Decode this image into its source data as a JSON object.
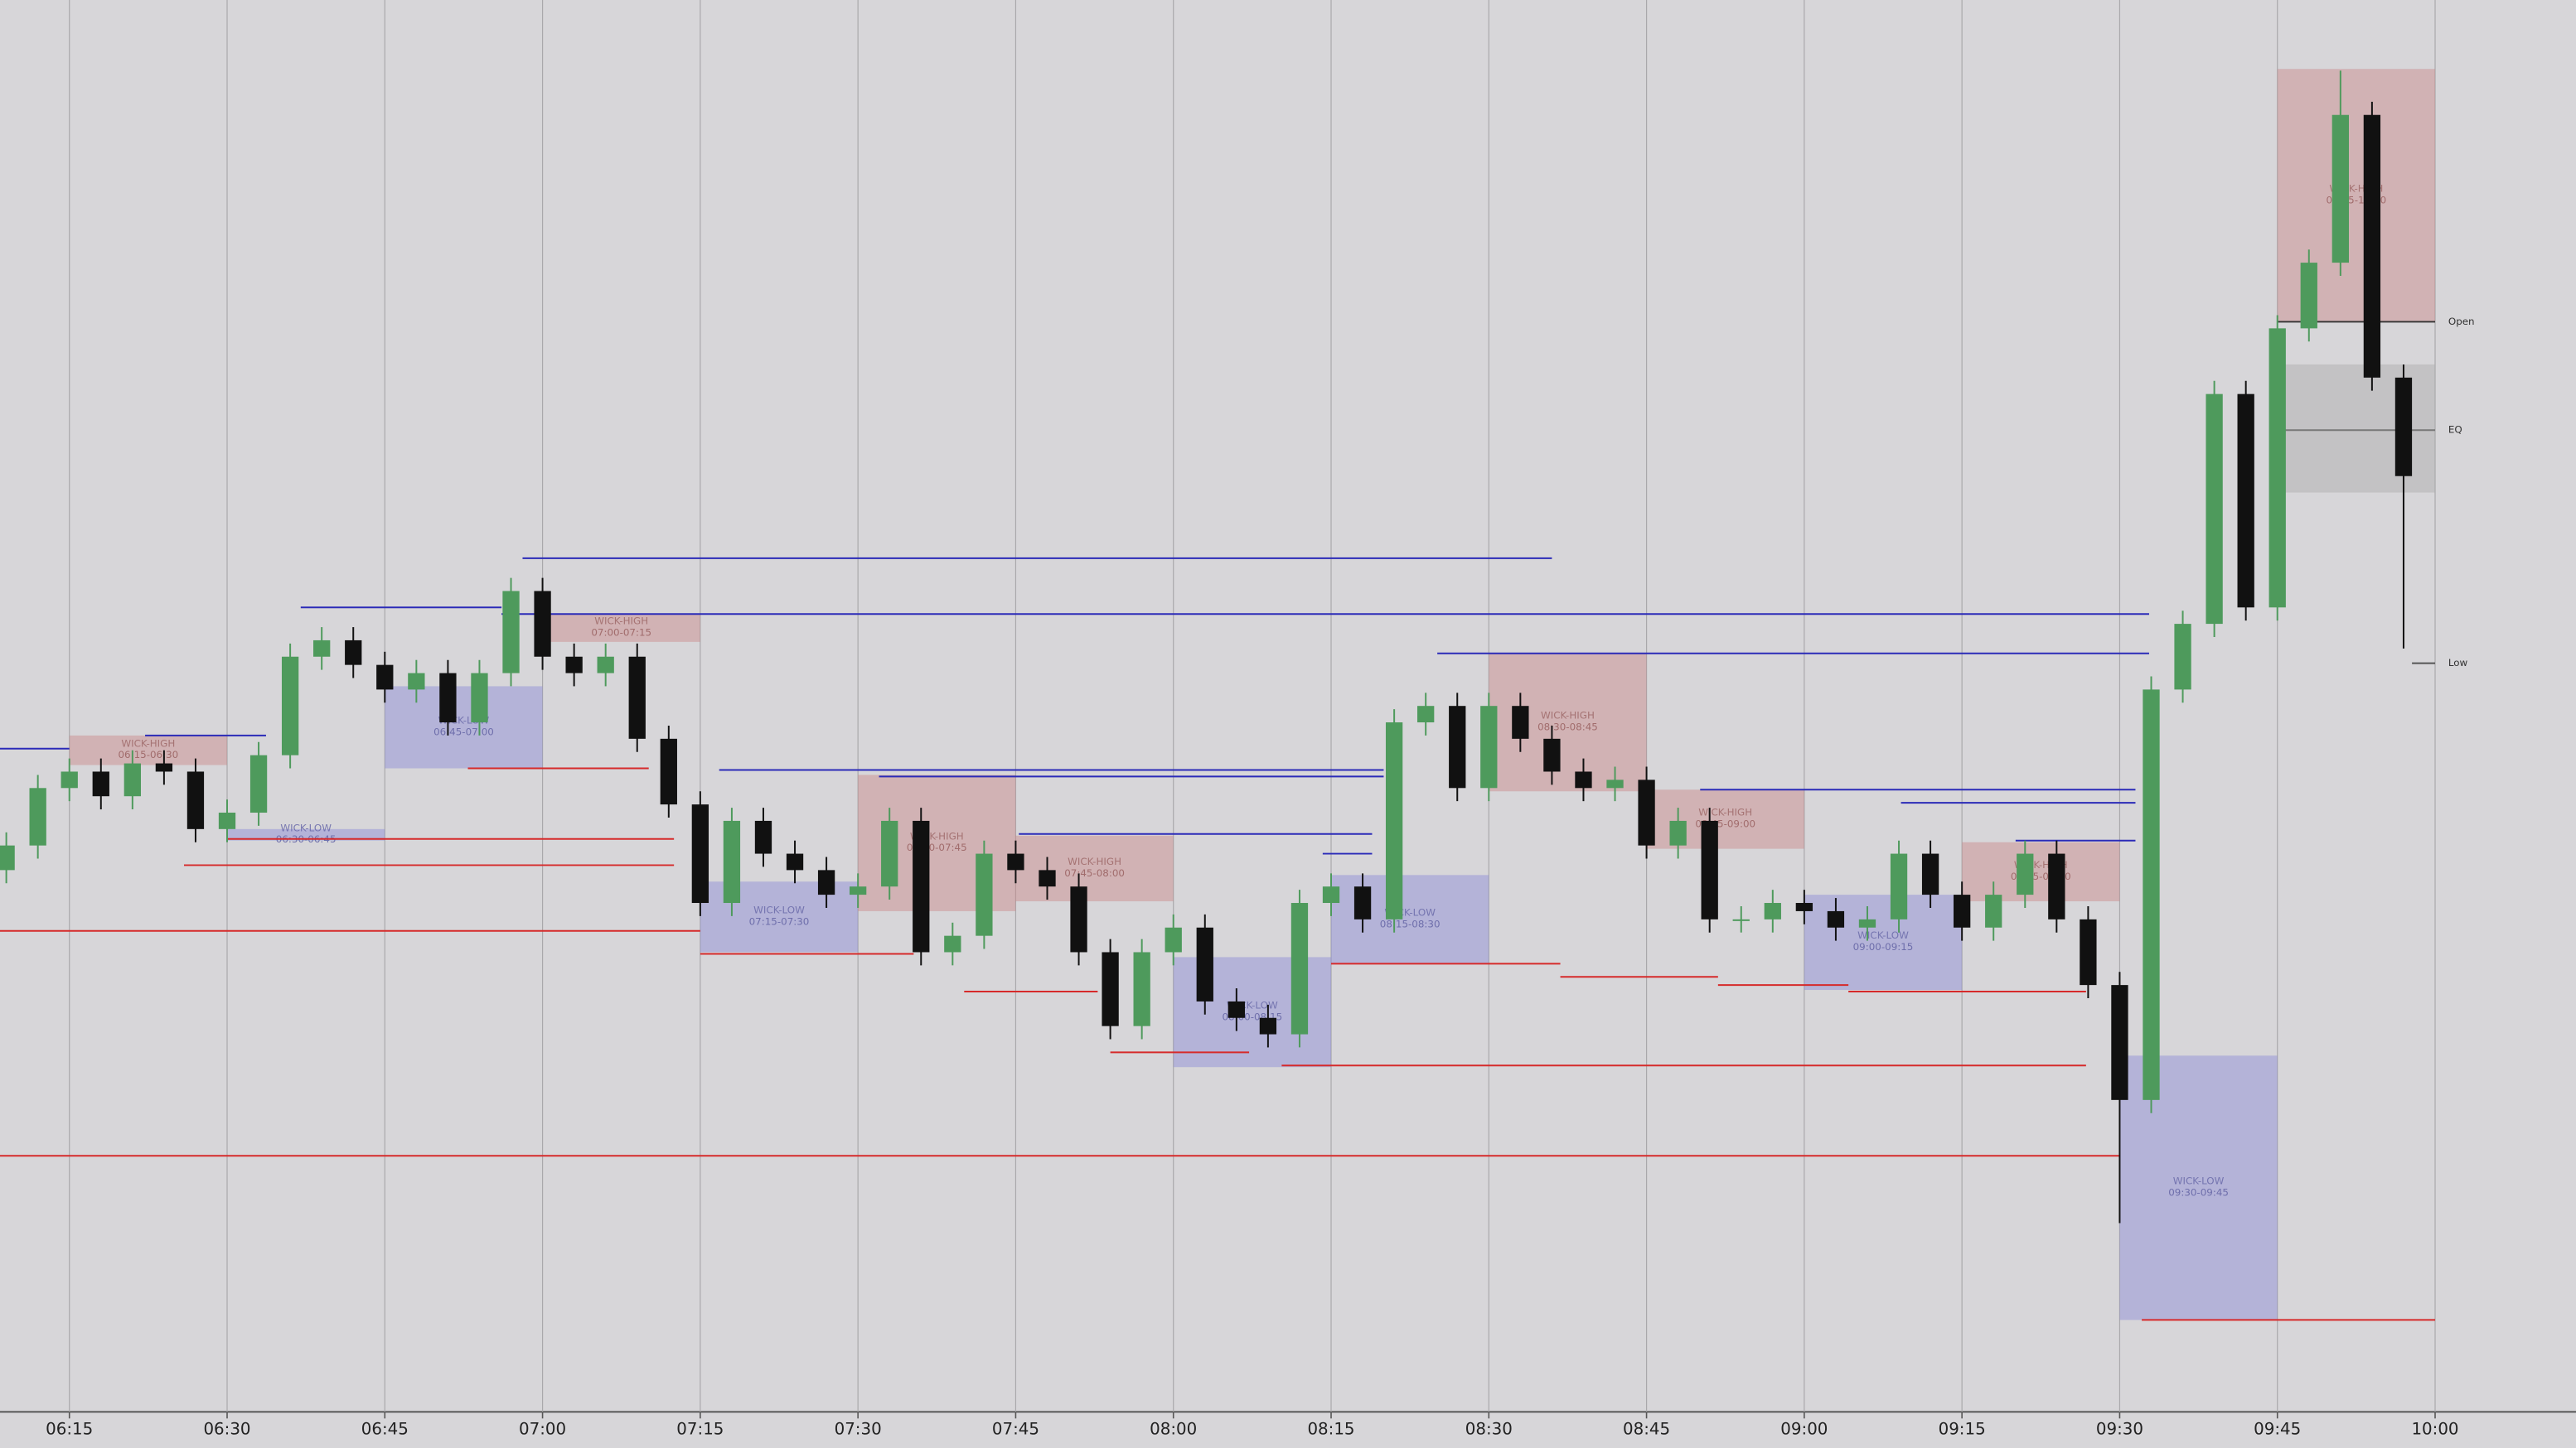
{
  "chart_data": {
    "type": "candlestick",
    "x": [
      369,
      372,
      375,
      378,
      381,
      384,
      387,
      390,
      393,
      396,
      399,
      402,
      405,
      408,
      411,
      414,
      417,
      420,
      423,
      426,
      429,
      432,
      435,
      438,
      441,
      444,
      447,
      450,
      453,
      456,
      459,
      462,
      465,
      468,
      471,
      474,
      477,
      480,
      483,
      486,
      489,
      492,
      495,
      498,
      501,
      504,
      507,
      510,
      513,
      516,
      519,
      522,
      525,
      528,
      531,
      534,
      537,
      540,
      543,
      546,
      549,
      552,
      555,
      558,
      561,
      564,
      567,
      570,
      573,
      576,
      579,
      582,
      585,
      588,
      591,
      594,
      597
    ],
    "open": [
      330,
      345,
      380,
      390,
      375,
      395,
      390,
      355,
      365,
      400,
      460,
      470,
      455,
      440,
      450,
      420,
      450,
      500,
      460,
      450,
      460,
      410,
      370,
      310,
      360,
      340,
      330,
      315,
      320,
      360,
      280,
      290,
      340,
      330,
      320,
      280,
      235,
      280,
      295,
      250,
      240,
      230,
      310,
      320,
      300,
      420,
      430,
      380,
      430,
      410,
      390,
      380,
      385,
      345,
      360,
      300,
      300,
      310,
      305,
      295,
      300,
      340,
      315,
      295,
      315,
      340,
      300,
      260,
      190,
      440,
      480,
      620,
      490,
      660,
      700,
      790,
      630
    ],
    "high": [
      353,
      388,
      398,
      398,
      403,
      403,
      398,
      373,
      408,
      468,
      478,
      478,
      463,
      458,
      458,
      458,
      508,
      508,
      468,
      468,
      468,
      418,
      378,
      368,
      368,
      348,
      338,
      328,
      368,
      368,
      298,
      348,
      348,
      338,
      328,
      288,
      288,
      303,
      303,
      258,
      248,
      318,
      328,
      328,
      428,
      438,
      438,
      438,
      438,
      418,
      398,
      393,
      393,
      368,
      368,
      308,
      318,
      318,
      313,
      308,
      348,
      348,
      323,
      323,
      348,
      348,
      308,
      268,
      448,
      488,
      628,
      628,
      668,
      708,
      817,
      798,
      638
    ],
    "low": [
      322,
      337,
      372,
      367,
      367,
      382,
      347,
      347,
      357,
      392,
      452,
      447,
      432,
      432,
      412,
      412,
      442,
      452,
      442,
      442,
      402,
      362,
      302,
      302,
      332,
      322,
      307,
      307,
      312,
      272,
      272,
      282,
      322,
      312,
      272,
      227,
      227,
      272,
      242,
      232,
      222,
      222,
      302,
      292,
      292,
      412,
      372,
      372,
      402,
      382,
      372,
      372,
      337,
      337,
      292,
      292,
      292,
      297,
      287,
      287,
      292,
      307,
      287,
      287,
      307,
      292,
      252,
      115,
      182,
      432,
      472,
      482,
      482,
      652,
      692,
      622,
      465
    ],
    "close": [
      345,
      380,
      390,
      375,
      395,
      390,
      355,
      365,
      400,
      460,
      470,
      455,
      440,
      450,
      420,
      450,
      500,
      460,
      450,
      460,
      410,
      370,
      310,
      360,
      340,
      330,
      315,
      320,
      360,
      280,
      290,
      340,
      330,
      320,
      280,
      235,
      280,
      295,
      250,
      240,
      230,
      310,
      320,
      300,
      420,
      430,
      380,
      430,
      410,
      390,
      380,
      385,
      345,
      360,
      300,
      300,
      310,
      305,
      295,
      300,
      340,
      315,
      295,
      315,
      340,
      300,
      260,
      190,
      440,
      480,
      620,
      490,
      660,
      700,
      790,
      630,
      570
    ],
    "up_color": "#4e9a5c",
    "down_color": "#111111",
    "xlim": [
      368.4,
      613.4
    ],
    "ylim": [
      0,
      860
    ],
    "xticks": [
      {
        "value": 375,
        "label": "06:15"
      },
      {
        "value": 390,
        "label": "06:30"
      },
      {
        "value": 405,
        "label": "06:45"
      },
      {
        "value": 420,
        "label": "07:00"
      },
      {
        "value": 435,
        "label": "07:15"
      },
      {
        "value": 450,
        "label": "07:30"
      },
      {
        "value": 465,
        "label": "07:45"
      },
      {
        "value": 480,
        "label": "08:00"
      },
      {
        "value": 495,
        "label": "08:15"
      },
      {
        "value": 510,
        "label": "08:30"
      },
      {
        "value": 525,
        "label": "08:45"
      },
      {
        "value": 540,
        "label": "09:00"
      },
      {
        "value": 555,
        "label": "09:15"
      },
      {
        "value": 570,
        "label": "09:30"
      },
      {
        "value": 585,
        "label": "09:45"
      },
      {
        "value": 600,
        "label": "10:00"
      }
    ],
    "grid": true,
    "zones": [
      {
        "start": 375,
        "end": 390,
        "top": 412,
        "bottom": 394,
        "color": "#c98787",
        "name": "WICK-HIGH",
        "range": "06:15-06:30"
      },
      {
        "start": 390,
        "end": 405,
        "top": 355,
        "bottom": 348,
        "color": "#8a8ad6",
        "name": "WICK-LOW",
        "range": "06:30-06:45"
      },
      {
        "start": 405,
        "end": 420,
        "top": 442,
        "bottom": 392,
        "color": "#8a8ad6",
        "name": "WICK-LOW",
        "range": "06:45-07:00"
      },
      {
        "start": 420,
        "end": 435,
        "top": 486,
        "bottom": 469,
        "color": "#c98787",
        "name": "WICK-HIGH",
        "range": "07:00-07:15"
      },
      {
        "start": 435,
        "end": 450,
        "top": 323,
        "bottom": 280,
        "color": "#8a8ad6",
        "name": "WICK-LOW",
        "range": "07:15-07:30"
      },
      {
        "start": 450,
        "end": 465,
        "top": 388,
        "bottom": 305,
        "color": "#c98787",
        "name": "WICK-HIGH",
        "range": "07:30-07:45"
      },
      {
        "start": 465,
        "end": 480,
        "top": 351,
        "bottom": 311,
        "color": "#c98787",
        "name": "WICK-HIGH",
        "range": "07:45-08:00"
      },
      {
        "start": 480,
        "end": 495,
        "top": 277,
        "bottom": 210,
        "color": "#8a8ad6",
        "name": "WICK-LOW",
        "range": "08:00-08:15"
      },
      {
        "start": 495,
        "end": 510,
        "top": 327,
        "bottom": 273,
        "color": "#8a8ad6",
        "name": "WICK-LOW",
        "range": "08:15-08:30"
      },
      {
        "start": 510,
        "end": 525,
        "top": 462,
        "bottom": 378,
        "color": "#c98787",
        "name": "WICK-HIGH",
        "range": "08:30-08:45"
      },
      {
        "start": 525,
        "end": 540,
        "top": 379,
        "bottom": 343,
        "color": "#c98787",
        "name": "WICK-HIGH",
        "range": "08:45-09:00"
      },
      {
        "start": 540,
        "end": 555,
        "top": 315,
        "bottom": 257,
        "color": "#8a8ad6",
        "name": "WICK-LOW",
        "range": "09:00-09:15"
      },
      {
        "start": 555,
        "end": 570,
        "top": 347,
        "bottom": 311,
        "color": "#c98787",
        "name": "WICK-HIGH",
        "range": "09:15-09:30"
      },
      {
        "start": 570,
        "end": 585,
        "top": 217,
        "bottom": 56,
        "color": "#8a8ad6",
        "name": "WICK-LOW",
        "range": "09:30-09:45"
      },
      {
        "start": 585,
        "end": 600,
        "top": 818,
        "bottom": 664,
        "color": "#c98787",
        "name": "WICK-HIGH",
        "range": "09:45-10:00"
      },
      {
        "start": 585,
        "end": 600,
        "top": 638,
        "bottom": 560,
        "color": "#aaaaaa"
      }
    ],
    "levels": [
      {
        "start": 418.1,
        "end": 516.0,
        "value": 520,
        "color": "#2b2bb8"
      },
      {
        "start": 397.0,
        "end": 416.1,
        "value": 490,
        "color": "#2b2bb8"
      },
      {
        "start": 416.1,
        "end": 572.8,
        "value": 486,
        "color": "#2b2bb8"
      },
      {
        "start": 505.1,
        "end": 572.8,
        "value": 462,
        "color": "#2b2bb8"
      },
      {
        "start": 436.8,
        "end": 500.0,
        "value": 391,
        "color": "#2b2bb8"
      },
      {
        "start": 452.0,
        "end": 500.0,
        "value": 387,
        "color": "#2b2bb8"
      },
      {
        "start": 530.1,
        "end": 571.5,
        "value": 379,
        "color": "#2b2bb8"
      },
      {
        "start": 549.2,
        "end": 571.5,
        "value": 371,
        "color": "#2b2bb8"
      },
      {
        "start": 465.3,
        "end": 498.9,
        "value": 352,
        "color": "#2b2bb8"
      },
      {
        "start": 560.1,
        "end": 571.5,
        "value": 348,
        "color": "#2b2bb8"
      },
      {
        "start": 368.4,
        "end": 375.0,
        "value": 404,
        "color": "#2b2bb8"
      },
      {
        "start": 382.2,
        "end": 393.7,
        "value": 412,
        "color": "#2b2bb8"
      },
      {
        "start": 494.2,
        "end": 498.9,
        "value": 340,
        "color": "#2b2bb8"
      },
      {
        "start": 390.0,
        "end": 432.5,
        "value": 349,
        "color": "#d62a2a"
      },
      {
        "start": 385.9,
        "end": 432.5,
        "value": 333,
        "color": "#d62a2a"
      },
      {
        "start": 368.4,
        "end": 435.0,
        "value": 293,
        "color": "#d62a2a"
      },
      {
        "start": 412.9,
        "end": 430.1,
        "value": 392,
        "color": "#d62a2a"
      },
      {
        "start": 435.0,
        "end": 455.3,
        "value": 279,
        "color": "#d62a2a"
      },
      {
        "start": 460.1,
        "end": 472.8,
        "value": 256,
        "color": "#d62a2a"
      },
      {
        "start": 474.0,
        "end": 487.2,
        "value": 219,
        "color": "#d62a2a"
      },
      {
        "start": 490.3,
        "end": 566.8,
        "value": 211,
        "color": "#d62a2a"
      },
      {
        "start": 495.0,
        "end": 516.8,
        "value": 273,
        "color": "#d62a2a"
      },
      {
        "start": 516.8,
        "end": 531.8,
        "value": 265,
        "color": "#d62a2a"
      },
      {
        "start": 531.8,
        "end": 544.2,
        "value": 260,
        "color": "#d62a2a"
      },
      {
        "start": 544.2,
        "end": 566.8,
        "value": 256,
        "color": "#d62a2a"
      },
      {
        "start": 368.4,
        "end": 570.0,
        "value": 156,
        "color": "#d62a2a"
      },
      {
        "start": 572.1,
        "end": 600.0,
        "value": 56,
        "color": "#d62a2a"
      },
      {
        "start": 585.0,
        "end": 600.0,
        "value": 664,
        "color": "#333333",
        "label": "Open"
      },
      {
        "start": 585.0,
        "end": 600.0,
        "value": 598,
        "color": "#777777",
        "label": "EQ"
      },
      {
        "start": 597.8,
        "end": 600.0,
        "value": 456,
        "color": "#555555",
        "label": "Low"
      }
    ]
  }
}
